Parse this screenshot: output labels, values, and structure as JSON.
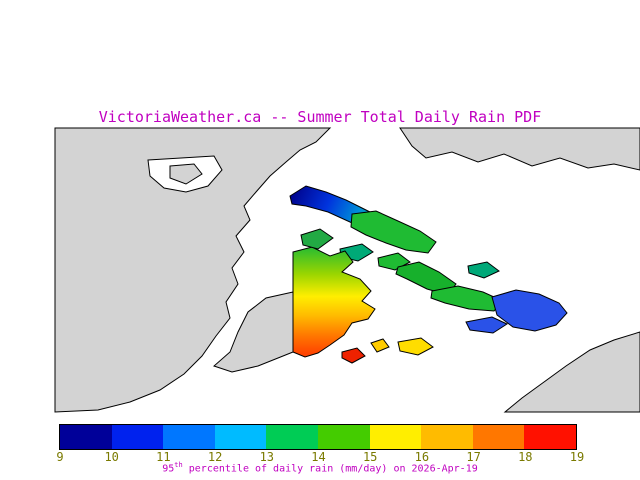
{
  "title": "VictoriaWeather.ca -- Summer Total Daily Rain PDF",
  "caption": {
    "value": "95",
    "superscript": "th",
    "rest": " percentile of daily rain (mm/day) on 2026-Apr-19"
  },
  "colors": {
    "title_text": "#c000c0",
    "caption_text": "#c000c0",
    "land": "#d3d3d3",
    "sea": "#ffffff",
    "coastline": "#000000",
    "tick_text": "#7a7a00"
  },
  "colorbar": {
    "tick_labels": [
      "9",
      "10",
      "11",
      "12",
      "13",
      "14",
      "15",
      "16",
      "17",
      "18",
      "19"
    ],
    "segment_colors": [
      "#000099",
      "#0022ee",
      "#0077ff",
      "#00bbff",
      "#00cc55",
      "#44cc00",
      "#ffee00",
      "#ffbb00",
      "#ff7700",
      "#ff1100"
    ],
    "tick_color": "#7a7a00"
  },
  "chart_data": {
    "type": "heatmap",
    "title": "VictoriaWeather.ca -- Summer Total Daily Rain PDF",
    "quantity": "95th percentile of daily rain (mm/day)",
    "date": "2026-Apr-19",
    "colorbar": {
      "min": 9,
      "max": 19,
      "units": "mm/day",
      "ticks": [
        9,
        10,
        11,
        12,
        13,
        14,
        15,
        16,
        17,
        18,
        19
      ],
      "segment_colors": [
        "#000099",
        "#0022ee",
        "#0077ff",
        "#00bbff",
        "#00cc55",
        "#44cc00",
        "#ffee00",
        "#ffbb00",
        "#ff7700",
        "#ff1100"
      ]
    },
    "regions": [
      {
        "area": "northwest long island (north tip)",
        "approx_value": "9-11",
        "color": "navy to blue"
      },
      {
        "area": "central gulf island chain",
        "approx_value": "13-15",
        "color": "green"
      },
      {
        "area": "eastern islands",
        "approx_value": "10-12",
        "color": "blue"
      },
      {
        "area": "southern peninsula (north to south)",
        "approx_value": "13-18",
        "color": "green-yellow-orange-red gradient"
      },
      {
        "area": "small island south of peninsula",
        "approx_value": "18-19",
        "color": "red"
      },
      {
        "area": "small island southeast of peninsula",
        "approx_value": "15-16",
        "color": "yellow"
      }
    ]
  }
}
